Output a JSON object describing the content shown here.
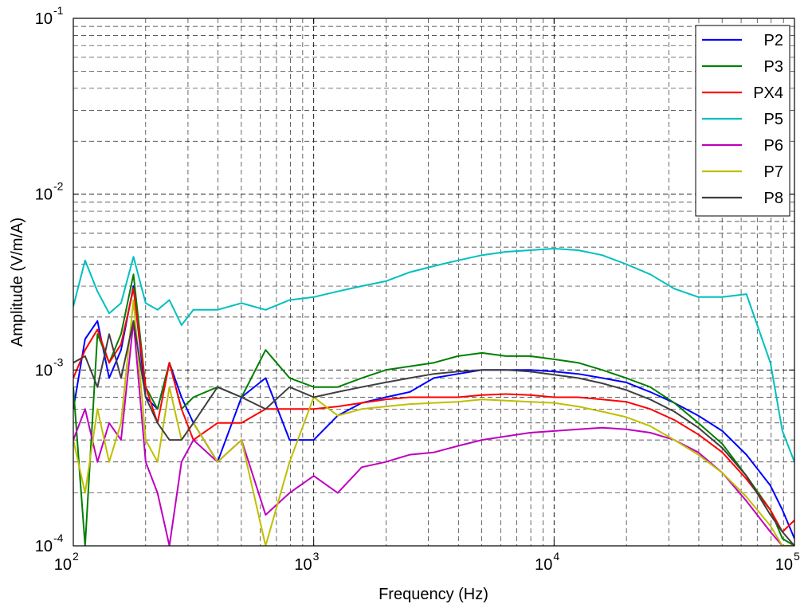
{
  "chart_data": {
    "type": "line",
    "title": "",
    "xlabel": "Frequency (Hz)",
    "ylabel": "Amplitude (V/m/A)",
    "xscale": "log",
    "yscale": "log",
    "xlim": [
      100,
      100000
    ],
    "ylim": [
      0.0001,
      0.1
    ],
    "grid": true,
    "legend_position": "top-right",
    "x_ticks": [
      {
        "base": "10",
        "exp": "2",
        "value": 100
      },
      {
        "base": "10",
        "exp": "3",
        "value": 1000
      },
      {
        "base": "10",
        "exp": "4",
        "value": 10000
      },
      {
        "base": "10",
        "exp": "5",
        "value": 100000
      }
    ],
    "y_ticks": [
      {
        "base": "10",
        "exp": "-4",
        "value": 0.0001
      },
      {
        "base": "10",
        "exp": "-3",
        "value": 0.001
      },
      {
        "base": "10",
        "exp": "-2",
        "value": 0.01
      },
      {
        "base": "10",
        "exp": "-1",
        "value": 0.1
      }
    ],
    "x": [
      100,
      112,
      126,
      141,
      158,
      178,
      200,
      224,
      251,
      282,
      316,
      398,
      501,
      631,
      794,
      1000,
      1259,
      1585,
      1995,
      2512,
      3162,
      3981,
      5012,
      6310,
      7943,
      10000,
      12589,
      15849,
      19953,
      25119,
      31623,
      39811,
      50119,
      63096,
      79433,
      89125,
      100000
    ],
    "series": [
      {
        "name": "P2",
        "color": "#0000ff",
        "values": [
          0.0006,
          0.0015,
          0.0019,
          0.0009,
          0.0013,
          0.003,
          0.0007,
          0.0006,
          0.0011,
          0.0007,
          0.0005,
          0.0003,
          0.0007,
          0.0009,
          0.0004,
          0.0004,
          0.00055,
          0.00065,
          0.0007,
          0.00075,
          0.0009,
          0.00095,
          0.001,
          0.001,
          0.001,
          0.00098,
          0.00095,
          0.0009,
          0.00085,
          0.00075,
          0.00065,
          0.00055,
          0.00045,
          0.00033,
          0.00022,
          0.00016,
          0.00011
        ]
      },
      {
        "name": "P3",
        "color": "#007f00",
        "values": [
          0.0008,
          0.0001,
          0.0016,
          0.0011,
          0.0016,
          0.0035,
          0.0008,
          0.0006,
          0.0011,
          0.0006,
          0.0007,
          0.0008,
          0.0007,
          0.0013,
          0.0009,
          0.0008,
          0.0008,
          0.0009,
          0.001,
          0.00105,
          0.0011,
          0.0012,
          0.00125,
          0.0012,
          0.0012,
          0.00115,
          0.0011,
          0.001,
          0.0009,
          0.0008,
          0.00065,
          0.0005,
          0.00038,
          0.00025,
          0.00016,
          0.00011,
          0.0001
        ]
      },
      {
        "name": "PX4",
        "color": "#ff0000",
        "values": [
          0.0009,
          0.0013,
          0.0017,
          0.0011,
          0.0014,
          0.0029,
          0.0008,
          0.0005,
          0.0011,
          0.0006,
          0.0004,
          0.0005,
          0.0005,
          0.0006,
          0.0006,
          0.0006,
          0.00062,
          0.00065,
          0.00068,
          0.0007,
          0.0007,
          0.0007,
          0.00072,
          0.00073,
          0.00072,
          0.0007,
          0.0007,
          0.00068,
          0.00066,
          0.0006,
          0.00052,
          0.00043,
          0.00034,
          0.00024,
          0.00016,
          0.00012,
          0.00014
        ]
      },
      {
        "name": "P5",
        "color": "#00bfbf",
        "values": [
          0.0023,
          0.0042,
          0.0028,
          0.0021,
          0.0024,
          0.0044,
          0.0024,
          0.0022,
          0.0025,
          0.0018,
          0.0022,
          0.0022,
          0.0024,
          0.0022,
          0.0025,
          0.0026,
          0.0028,
          0.003,
          0.0032,
          0.0036,
          0.0039,
          0.0042,
          0.0045,
          0.0047,
          0.0048,
          0.0049,
          0.0048,
          0.0045,
          0.004,
          0.0035,
          0.0029,
          0.0026,
          0.0026,
          0.0027,
          0.0011,
          0.00045,
          0.0003
        ]
      },
      {
        "name": "P6",
        "color": "#bf00bf",
        "values": [
          0.0004,
          0.0006,
          0.0003,
          0.0005,
          0.0004,
          0.0019,
          0.0003,
          0.0002,
          0.0001,
          0.0003,
          0.0004,
          0.0003,
          0.0004,
          0.00015,
          0.0002,
          0.00025,
          0.0002,
          0.00028,
          0.0003,
          0.00033,
          0.00034,
          0.00037,
          0.0004,
          0.00042,
          0.00044,
          0.00045,
          0.00046,
          0.00047,
          0.00046,
          0.00044,
          0.0004,
          0.00034,
          0.00026,
          0.00018,
          0.00012,
          0.0001,
          0.0001
        ]
      },
      {
        "name": "P7",
        "color": "#bfbf00",
        "values": [
          0.0004,
          0.0002,
          0.0006,
          0.0003,
          0.0005,
          0.0025,
          0.0004,
          0.0003,
          0.0008,
          0.0004,
          0.0005,
          0.0003,
          0.0004,
          0.0001,
          0.0003,
          0.0007,
          0.00055,
          0.0006,
          0.00062,
          0.00064,
          0.00065,
          0.00066,
          0.00068,
          0.00067,
          0.00066,
          0.00065,
          0.00062,
          0.00058,
          0.00054,
          0.00048,
          0.0004,
          0.00033,
          0.00026,
          0.00019,
          0.00013,
          0.0001,
          0.0001
        ]
      },
      {
        "name": "P8",
        "color": "#3f3f3f",
        "values": [
          0.0011,
          0.0012,
          0.0008,
          0.0016,
          0.0009,
          0.0019,
          0.0007,
          0.0005,
          0.0004,
          0.0004,
          0.0005,
          0.0008,
          0.0007,
          0.0006,
          0.0008,
          0.0007,
          0.00075,
          0.0008,
          0.00085,
          0.0009,
          0.00095,
          0.00098,
          0.001,
          0.001,
          0.00098,
          0.00094,
          0.0009,
          0.00084,
          0.00077,
          0.00068,
          0.00058,
          0.00047,
          0.00036,
          0.00025,
          0.00015,
          0.00012,
          0.0001
        ]
      }
    ]
  }
}
